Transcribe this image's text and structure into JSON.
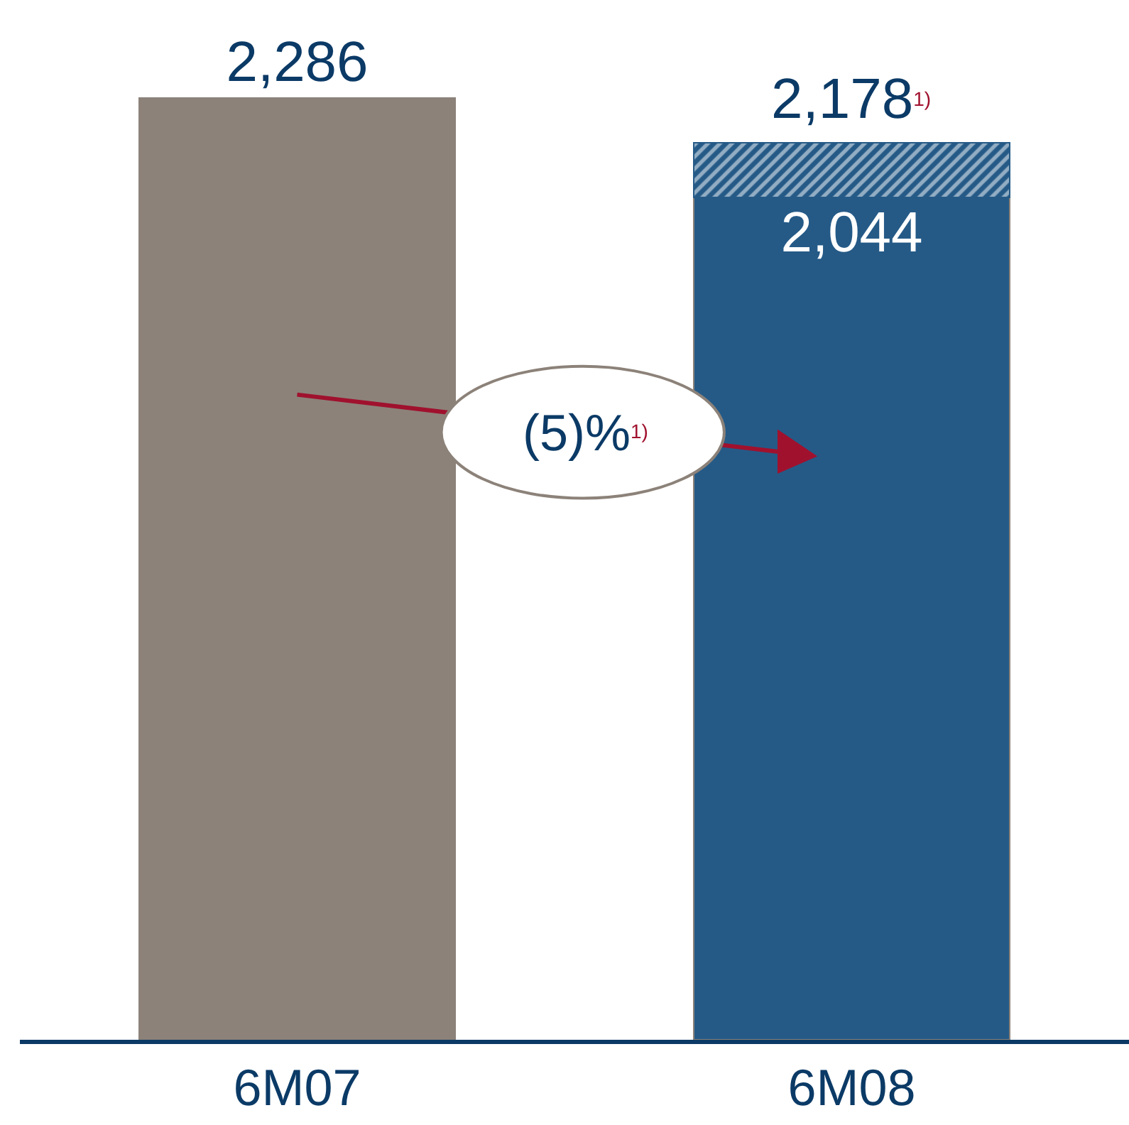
{
  "chart_data": {
    "type": "bar",
    "stacked": true,
    "categories": [
      "6M07",
      "6M08"
    ],
    "series": [
      {
        "colors": [
          "#8c8279",
          "#255a87"
        ],
        "values": [
          2286,
          2044
        ],
        "value_labels": [
          "2,286",
          "2,044"
        ]
      },
      {
        "color": "#255a87",
        "values": [
          null,
          134
        ],
        "value_labels": [
          null,
          null
        ]
      }
    ],
    "totals": [
      null,
      "2,178$^{1)}$"
    ],
    "annotations": [
      "(5)%$^{1)}$"
    ]
  }
}
